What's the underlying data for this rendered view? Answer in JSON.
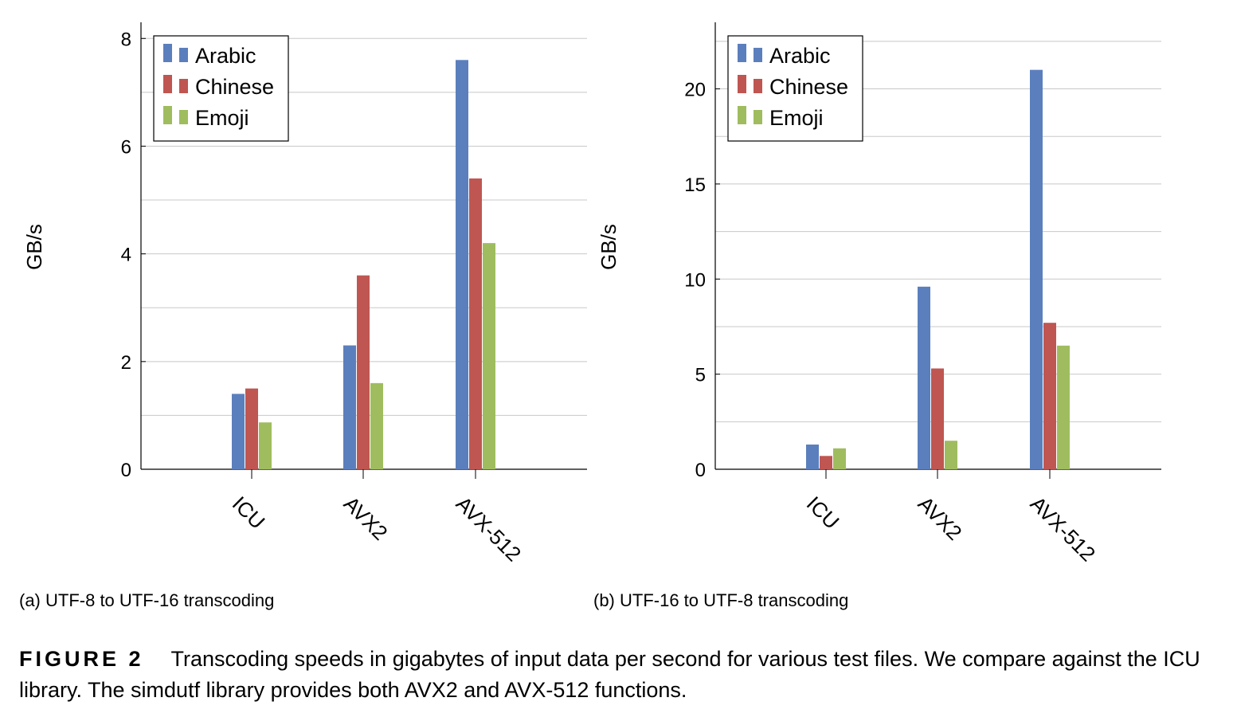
{
  "chart_data": [
    {
      "type": "bar",
      "title": "",
      "xlabel": "",
      "ylabel": "GB/s",
      "categories": [
        "ICU",
        "AVX2",
        "AVX-512"
      ],
      "ylim": [
        0,
        8.3
      ],
      "yticks": [
        0,
        2,
        4,
        6,
        8
      ],
      "grid": true,
      "legend": "top-left",
      "series": [
        {
          "name": "Arabic",
          "color": "#5b7fbd",
          "values": [
            1.4,
            2.3,
            7.6
          ]
        },
        {
          "name": "Chinese",
          "color": "#bf5651",
          "values": [
            1.5,
            3.6,
            5.4
          ]
        },
        {
          "name": "Emoji",
          "color": "#9fbd5e",
          "values": [
            0.87,
            1.6,
            4.2
          ]
        }
      ],
      "subcaption": "(a) UTF-8 to UTF-16 transcoding"
    },
    {
      "type": "bar",
      "title": "",
      "xlabel": "",
      "ylabel": "GB/s",
      "categories": [
        "ICU",
        "AVX2",
        "AVX-512"
      ],
      "ylim": [
        0,
        23.5
      ],
      "yticks": [
        0,
        5,
        10,
        15,
        20
      ],
      "grid": true,
      "legend": "top-left",
      "series": [
        {
          "name": "Arabic",
          "color": "#5b7fbd",
          "values": [
            1.3,
            9.6,
            21
          ]
        },
        {
          "name": "Chinese",
          "color": "#bf5651",
          "values": [
            0.7,
            5.3,
            7.7
          ]
        },
        {
          "name": "Emoji",
          "color": "#9fbd5e",
          "values": [
            1.1,
            1.5,
            6.5
          ]
        }
      ],
      "subcaption": "(b) UTF-16 to UTF-8 transcoding"
    }
  ],
  "figure": {
    "label": "FIGURE 2",
    "caption": "Transcoding speeds in gigabytes of input data per second for various test files. We compare against the ICU library. The simdutf library provides both AVX2 and AVX-512 functions."
  }
}
